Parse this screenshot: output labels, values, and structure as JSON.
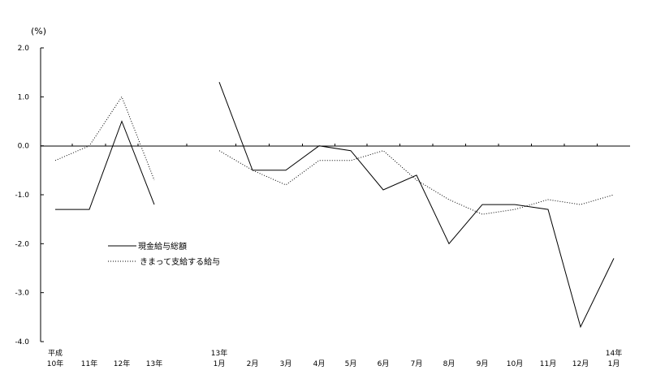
{
  "chart_data": {
    "type": "line",
    "ylabel": "(%)",
    "ylim": [
      -4.0,
      2.0
    ],
    "yticks": [
      "2.0",
      "1.0",
      "0.0",
      "-1.0",
      "-2.0",
      "-3.0",
      "-4.0"
    ],
    "grid": false,
    "legend_placement": "lower-left",
    "categories": [
      {
        "top": "平成",
        "bottom": "10年"
      },
      {
        "top": "",
        "bottom": "11年"
      },
      {
        "top": "",
        "bottom": "12年"
      },
      {
        "top": "",
        "bottom": "13年"
      },
      {
        "top": "13年",
        "bottom": "1月"
      },
      {
        "top": "",
        "bottom": "2月"
      },
      {
        "top": "",
        "bottom": "3月"
      },
      {
        "top": "",
        "bottom": "4月"
      },
      {
        "top": "",
        "bottom": "5月"
      },
      {
        "top": "",
        "bottom": "6月"
      },
      {
        "top": "",
        "bottom": "7月"
      },
      {
        "top": "",
        "bottom": "8月"
      },
      {
        "top": "",
        "bottom": "9月"
      },
      {
        "top": "",
        "bottom": "10月"
      },
      {
        "top": "",
        "bottom": "11月"
      },
      {
        "top": "",
        "bottom": "12月"
      },
      {
        "top": "14年",
        "bottom": "1月"
      }
    ],
    "segments": [
      [
        0,
        3
      ],
      [
        4,
        16
      ]
    ],
    "series": [
      {
        "name": "現金給与総額",
        "style": "solid",
        "color": "#000000",
        "values": [
          -1.3,
          -1.3,
          0.5,
          -1.2,
          1.3,
          -0.5,
          -0.5,
          0.0,
          -0.1,
          -0.9,
          -0.6,
          -2.0,
          -1.2,
          -1.2,
          -1.3,
          -3.7,
          -2.3
        ]
      },
      {
        "name": "きまって支給する給与",
        "style": "dotted",
        "color": "#000000",
        "values": [
          -0.3,
          0.0,
          1.0,
          -0.7,
          -0.1,
          -0.5,
          -0.8,
          -0.3,
          -0.3,
          -0.1,
          -0.7,
          -1.1,
          -1.4,
          -1.3,
          -1.1,
          -1.2,
          -1.0
        ]
      }
    ]
  }
}
